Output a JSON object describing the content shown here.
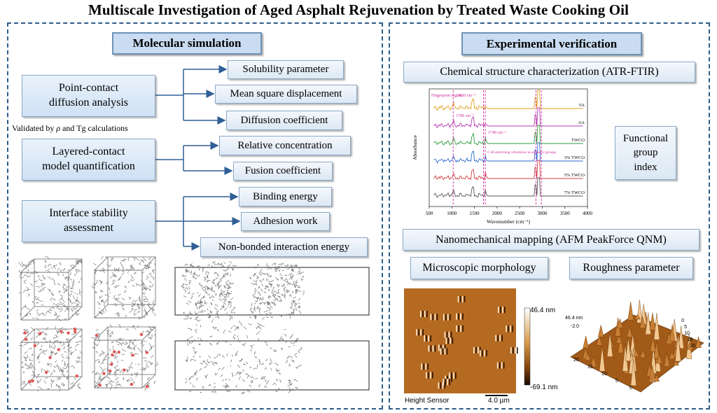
{
  "title": "Multiscale Investigation of Aged Asphalt Rejuvenation by Treated Waste Cooking Oil",
  "left_panel": {
    "header": "Molecular simulation",
    "validation_note_pre": "Validated by ",
    "validation_note_rho": "ρ",
    "validation_note_post": " and Tg calculations",
    "analyses": [
      {
        "label_line1": "Point-contact",
        "label_line2": "diffusion analysis",
        "metrics": [
          "Solubility parameter",
          "Mean square displacement",
          "Diffusion coefficient"
        ]
      },
      {
        "label_line1": "Layered-contact",
        "label_line2": "model quantification",
        "metrics": [
          "Relative concentration",
          "Fusion coefficient"
        ]
      },
      {
        "label_line1": "Interface stability",
        "label_line2": "assessment",
        "metrics": [
          "Binding energy",
          "Adhesion work",
          "Non-bonded interaction energy"
        ]
      }
    ]
  },
  "right_panel": {
    "header": "Experimental verification",
    "ftir_header": "Chemical structure characterization (ATR-FTIR)",
    "functional_group_line1": "Functional",
    "functional_group_line2": "group",
    "functional_group_line3": "index",
    "afm_header": "Nanomechanical mapping (AFM PeakForce QNM)",
    "morphology_label": "Microscopic morphology",
    "roughness_label": "Roughness parameter"
  },
  "ftir_chart": {
    "xlabel": "Wavenumber (cm⁻¹)",
    "ylabel": "Absorbance",
    "x_ticks": [
      "500",
      "1000",
      "1500",
      "2000",
      "2500",
      "3000",
      "3500",
      "4000"
    ],
    "series_labels": [
      "VA",
      "AA",
      "TWCO",
      "3% TWCO",
      "5% TWCO",
      "7% TWCO"
    ],
    "annotations": [
      "Fingerprint region",
      "1030 cm⁻¹",
      "1700 cm⁻¹",
      "1740 cm⁻¹",
      "C-H stretching vibrations in aliphatic groups"
    ]
  },
  "afm_image": {
    "scale_max": "46.4 nm",
    "scale_min": "-69.1 nm",
    "sensor_label": "Height Sensor",
    "scale_bar": "4.0 µm",
    "plot3d_zmax": "46.4 nm",
    "plot3d_zmin": "-2.0",
    "plot3d_ticks": [
      "20",
      "15",
      "10",
      "5",
      "0"
    ]
  },
  "colors": {
    "panel_border": "#2e5d8a",
    "header_fill": "#c9dcf1",
    "box_fill": "#dce8f5",
    "arrow": "#2f5f95",
    "afm_brown": "#8b4a10"
  }
}
